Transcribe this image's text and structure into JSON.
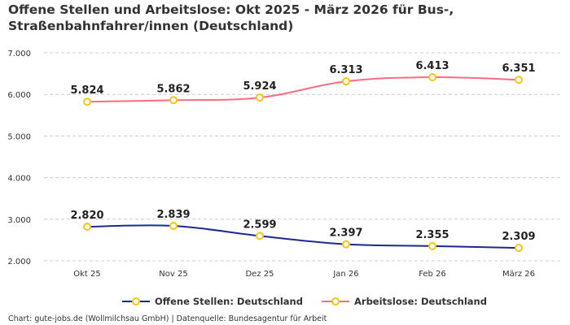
{
  "chart_data": {
    "type": "line",
    "title": "Offene Stellen und Arbeitslose: Okt 2025 - März 2026 für Bus-, Straßenbahnfahrer/innen (Deutschland)",
    "categories": [
      "Okt 25",
      "Nov 25",
      "Dez 25",
      "Jan 26",
      "Feb 26",
      "März 26"
    ],
    "ylim": [
      2000,
      7000
    ],
    "yticks": [
      2000,
      3000,
      4000,
      5000,
      6000,
      7000
    ],
    "ytick_labels": [
      "2.000",
      "3.000",
      "4.000",
      "5.000",
      "6.000",
      "7.000"
    ],
    "grid": true,
    "legend": "bottom",
    "series": [
      {
        "name": "Offene Stellen: Deutschland",
        "color": "#1b2a8f",
        "values": [
          2820,
          2839,
          2599,
          2397,
          2355,
          2309
        ],
        "labels": [
          "2.820",
          "2.839",
          "2.599",
          "2.397",
          "2.355",
          "2.309"
        ]
      },
      {
        "name": "Arbeitslose: Deutschland",
        "color": "#ff6b81",
        "values": [
          5824,
          5862,
          5924,
          6313,
          6413,
          6351
        ],
        "labels": [
          "5.824",
          "5.862",
          "5.924",
          "6.313",
          "6.413",
          "6.351"
        ]
      }
    ],
    "marker_color": "#f5c518"
  },
  "footer": "Chart: gute-jobs.de (Wollmilchsau GmbH) | Datenquelle: Bundesagentur für Arbeit"
}
